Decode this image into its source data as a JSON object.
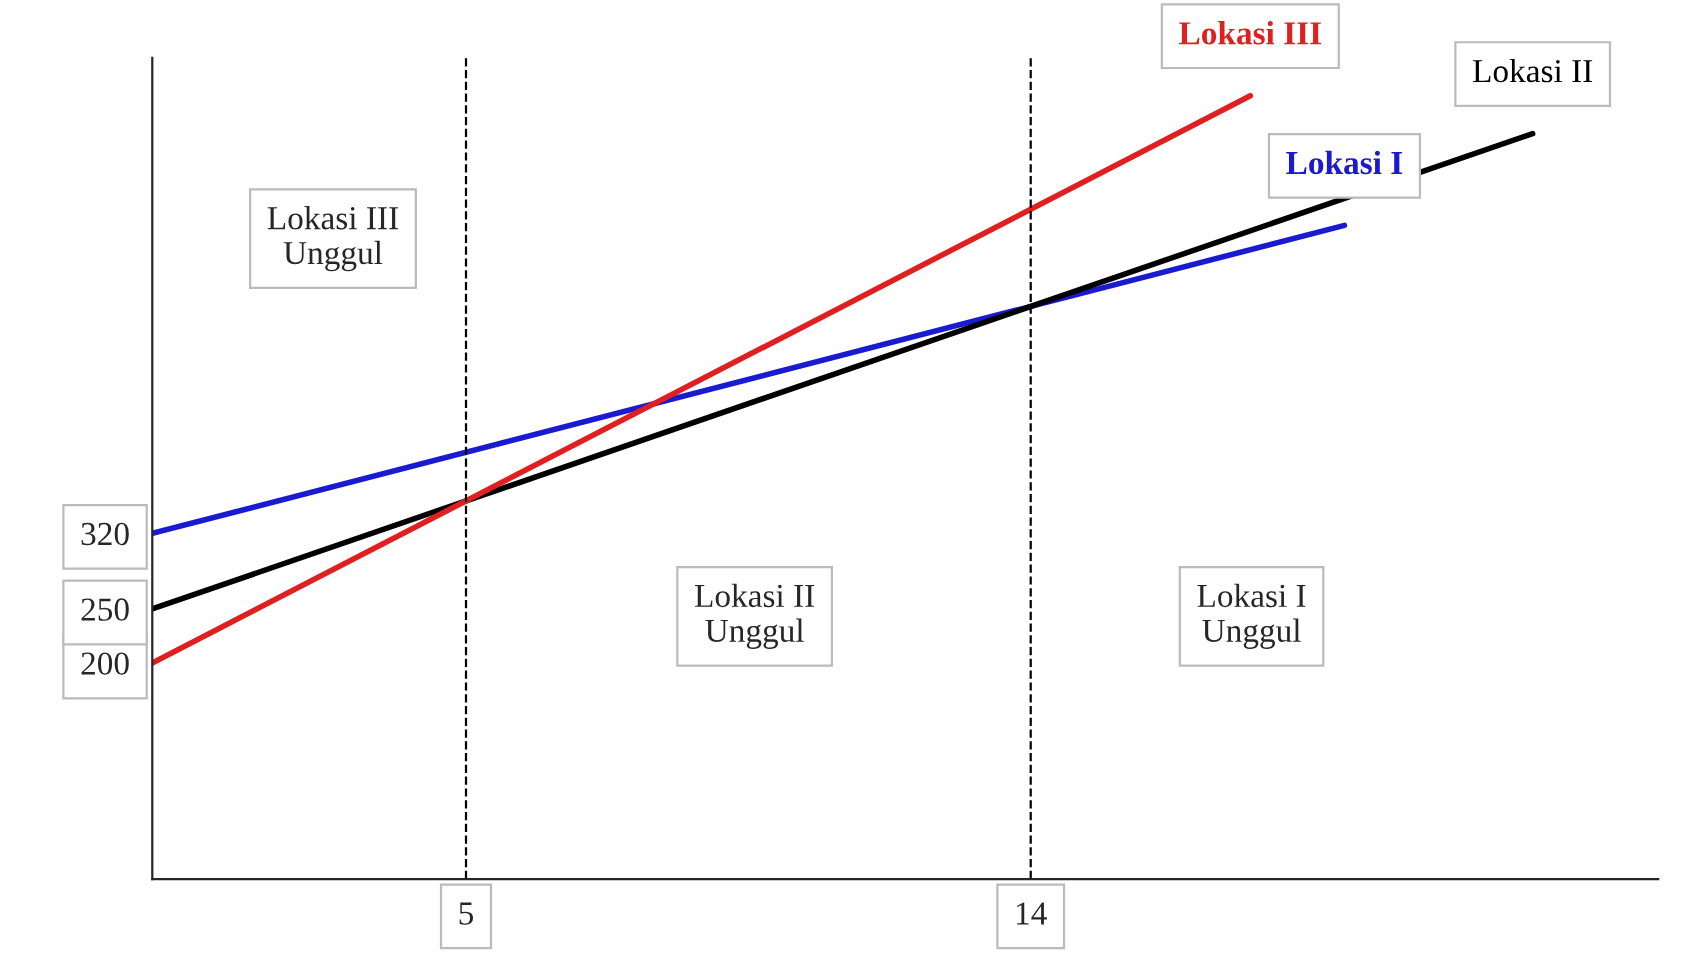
{
  "chart_data": {
    "type": "line",
    "xlim": [
      0,
      24
    ],
    "ylim": [
      0,
      760
    ],
    "xticks": [
      5,
      14
    ],
    "yticks": [
      200,
      250,
      320
    ],
    "grid": false,
    "legend": false,
    "marker": "none",
    "line_style": "solid",
    "series": [
      {
        "name": "Lokasi I",
        "color": "#1a1ad0",
        "x": [
          0,
          19
        ],
        "values": [
          320,
          605
        ]
      },
      {
        "name": "Lokasi II",
        "color": "#000000",
        "x": [
          0,
          22
        ],
        "values": [
          250,
          690
        ]
      },
      {
        "name": "Lokasi III",
        "color": "#e02020",
        "x": [
          0,
          17.5
        ],
        "values": [
          200,
          725
        ]
      }
    ],
    "ref_lines": [
      {
        "axis": "x",
        "value": 5,
        "color": "#000000",
        "line_style": "dashed"
      },
      {
        "axis": "x",
        "value": 14,
        "color": "#000000",
        "line_style": "dashed"
      }
    ],
    "annotations": [
      "Lokasi III\nUnggul",
      "Lokasi II\nUnggul",
      "Lokasi I\nUnggul"
    ]
  }
}
